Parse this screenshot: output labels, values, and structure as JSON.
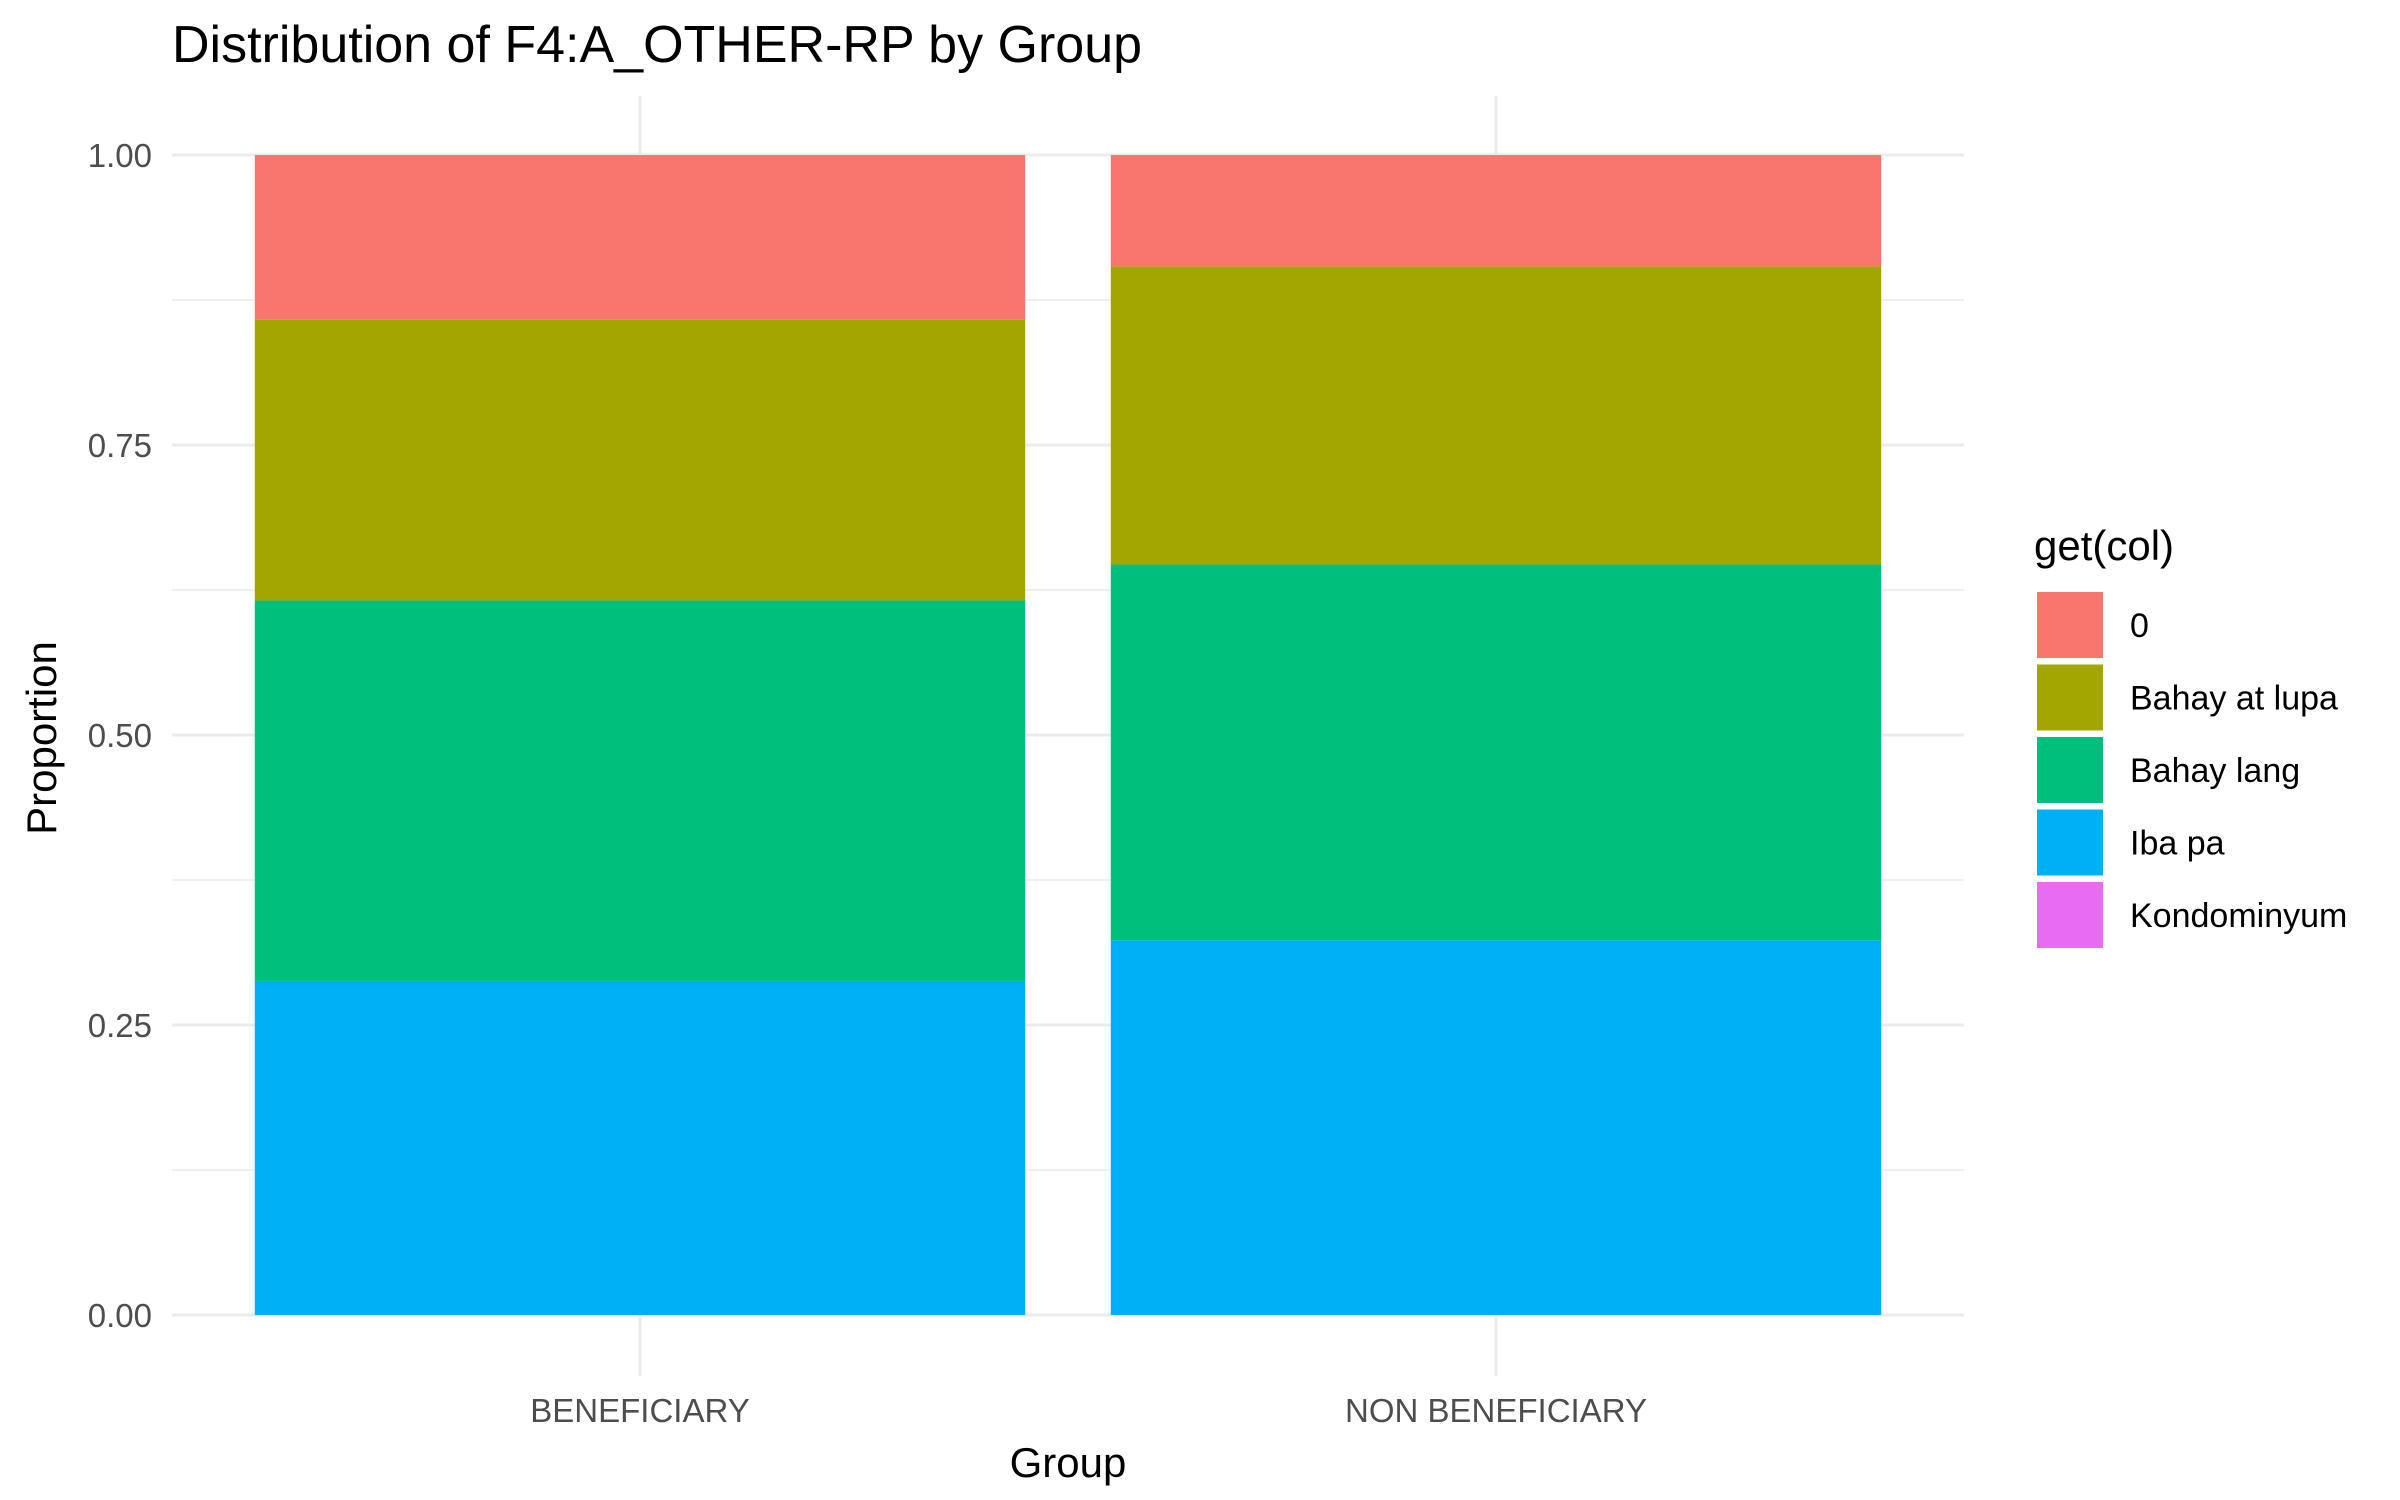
{
  "chart_data": {
    "type": "bar",
    "stacked": true,
    "title": "Distribution of F4:A_OTHER-RP by Group",
    "xlabel": "Group",
    "ylabel": "Proportion",
    "ylim": [
      0,
      1
    ],
    "y_ticks": [
      "0.00",
      "0.25",
      "0.50",
      "0.75",
      "1.00"
    ],
    "categories": [
      "BENEFICIARY",
      "NON BENEFICIARY"
    ],
    "legend_title": "get(col)",
    "legend_position": "right",
    "grid": true,
    "series": [
      {
        "name": "0",
        "color": "#F8766D",
        "values": [
          0.142,
          0.096
        ]
      },
      {
        "name": "Bahay at lupa",
        "color": "#A3A500",
        "values": [
          0.242,
          0.257
        ]
      },
      {
        "name": "Bahay lang",
        "color": "#00BF7D",
        "values": [
          0.328,
          0.324
        ]
      },
      {
        "name": "Iba pa",
        "color": "#00B0F6",
        "values": [
          0.288,
          0.323
        ]
      },
      {
        "name": "Kondominyum",
        "color": "#E76BF3",
        "values": [
          0.0,
          0.0
        ]
      }
    ]
  }
}
